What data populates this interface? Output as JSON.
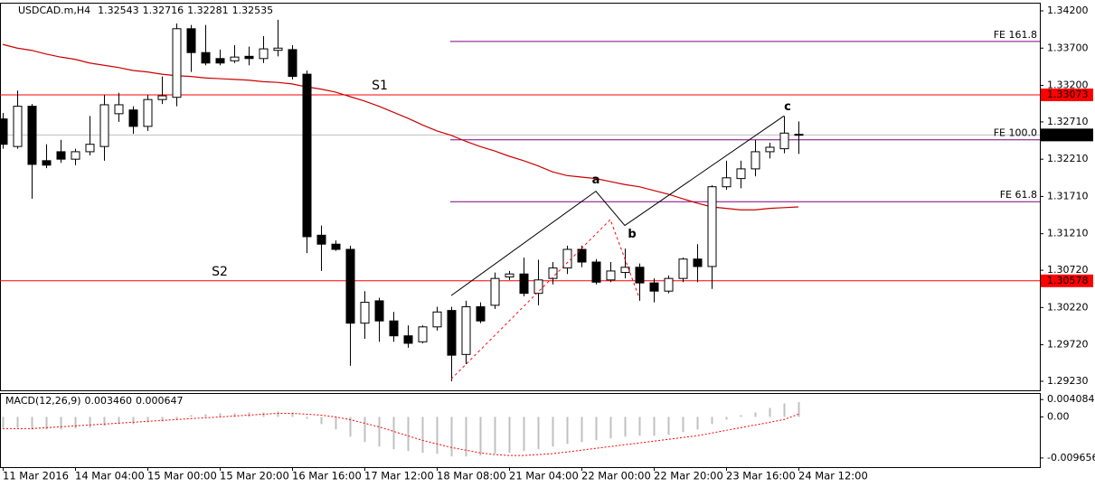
{
  "chart_data": [
    {
      "type": "candlestick",
      "title": "USDCAD.m,H4",
      "categories": [
        "11 Mar 2016",
        null,
        null,
        null,
        null,
        "14 Mar 04:00",
        null,
        null,
        null,
        null,
        "15 Mar 00:00",
        null,
        null,
        null,
        null,
        "15 Mar 20:00",
        null,
        null,
        null,
        null,
        "16 Mar 16:00",
        null,
        null,
        null,
        null,
        "17 Mar 12:00",
        null,
        null,
        null,
        null,
        "18 Mar 08:00",
        null,
        null,
        null,
        null,
        "21 Mar 04:00",
        null,
        null,
        null,
        null,
        "22 Mar 00:00",
        null,
        null,
        null,
        null,
        "22 Mar 20:00",
        null,
        null,
        null,
        null,
        "23 Mar 16:00",
        null,
        null,
        null,
        null,
        "24 Mar 12:00"
      ],
      "open": [
        1.3275,
        1.3238,
        1.3292,
        1.3219,
        1.3231,
        1.3221,
        1.3231,
        1.3238,
        1.3282,
        1.3287,
        1.3265,
        1.3301,
        1.3304,
        1.3396,
        1.3364,
        1.3356,
        1.3353,
        1.3359,
        1.3356,
        1.3367,
        1.3368,
        1.3335,
        1.3119,
        1.3107,
        1.31,
        1.3001,
        1.3031,
        1.3004,
        1.2984,
        1.2976,
        1.2996,
        1.3018,
        1.2959,
        1.3023,
        1.3025,
        1.3063,
        1.3067,
        1.3041,
        1.3061,
        1.3075,
        1.31,
        1.3083,
        1.3059,
        1.3069,
        1.3076,
        1.3055,
        1.3044,
        1.3061,
        1.3087,
        1.3077,
        1.3184,
        1.3195,
        1.3208,
        1.3231,
        1.3235,
        1.32543
      ],
      "high": [
        1.3283,
        1.3313,
        1.3295,
        1.3241,
        1.3247,
        1.3235,
        1.3279,
        1.3307,
        1.331,
        1.3292,
        1.3307,
        1.3332,
        1.3403,
        1.3401,
        1.3401,
        1.3368,
        1.3374,
        1.3372,
        1.3386,
        1.3408,
        1.3374,
        1.334,
        1.3132,
        1.3112,
        1.3105,
        1.3044,
        1.3035,
        1.3016,
        1.2998,
        1.2998,
        1.3023,
        1.3023,
        1.3031,
        1.3029,
        1.3069,
        1.3071,
        1.3089,
        1.3086,
        1.3083,
        1.3105,
        1.3105,
        1.3087,
        1.3083,
        1.3101,
        1.3081,
        1.3061,
        1.3065,
        1.3089,
        1.3107,
        1.3186,
        1.3219,
        1.3219,
        1.3247,
        1.3243,
        1.3279,
        1.32716
      ],
      "low": [
        1.3235,
        1.3235,
        1.3168,
        1.3209,
        1.3216,
        1.3213,
        1.3226,
        1.3219,
        1.3271,
        1.3255,
        1.3259,
        1.3295,
        1.3292,
        1.3338,
        1.3347,
        1.3347,
        1.335,
        1.3347,
        1.335,
        1.3359,
        1.3328,
        1.3095,
        1.3071,
        1.3098,
        1.2944,
        1.298,
        1.2976,
        1.2976,
        1.2968,
        1.2974,
        1.2991,
        1.2923,
        1.2946,
        1.3001,
        1.302,
        1.3059,
        1.3037,
        1.3025,
        1.3053,
        1.3067,
        1.3076,
        1.3053,
        1.3056,
        1.3061,
        1.3031,
        1.3029,
        1.3041,
        1.3056,
        1.3056,
        1.3047,
        1.318,
        1.3182,
        1.3198,
        1.3222,
        1.3229,
        1.32281
      ],
      "close": [
        1.3241,
        1.3292,
        1.3214,
        1.3213,
        1.3221,
        1.3231,
        1.3241,
        1.3294,
        1.3294,
        1.3265,
        1.3301,
        1.3306,
        1.3396,
        1.3364,
        1.335,
        1.335,
        1.3358,
        1.3356,
        1.3369,
        1.337,
        1.3332,
        1.3117,
        1.3107,
        1.31,
        1.3001,
        1.3029,
        1.3004,
        1.2984,
        1.2974,
        1.2996,
        1.3016,
        1.2958,
        1.3023,
        1.3004,
        1.3061,
        1.3067,
        1.3041,
        1.3059,
        1.3075,
        1.31,
        1.3083,
        1.3056,
        1.3071,
        1.3076,
        1.3055,
        1.3044,
        1.3061,
        1.3087,
        1.3077,
        1.3184,
        1.3196,
        1.3208,
        1.3231,
        1.3237,
        1.3256,
        1.32535
      ],
      "moving_average": {
        "color": "#cc0000",
        "values": [
          1.3375,
          1.337,
          1.3367,
          1.3362,
          1.3358,
          1.3355,
          1.335,
          1.3347,
          1.3344,
          1.334,
          1.3338,
          1.3335,
          1.3333,
          1.3332,
          1.333,
          1.3329,
          1.3328,
          1.3327,
          1.3325,
          1.3324,
          1.3322,
          1.3318,
          1.3315,
          1.3311,
          1.3305,
          1.3299,
          1.3292,
          1.3284,
          1.3276,
          1.3267,
          1.3259,
          1.3253,
          1.3245,
          1.3238,
          1.3232,
          1.3225,
          1.3219,
          1.3212,
          1.3204,
          1.3199,
          1.3197,
          1.3195,
          1.3191,
          1.3187,
          1.3184,
          1.3179,
          1.3174,
          1.3168,
          1.3162,
          1.3157,
          1.3155,
          1.3153,
          1.3153,
          1.3155,
          1.3156,
          1.3157
        ]
      },
      "levels": [
        {
          "name": "FE 161.8",
          "value": 1.3379,
          "color": "#800080",
          "from": 31
        },
        {
          "name": "S1",
          "value": 1.33073,
          "color": "#ff0000",
          "tag": true
        },
        {
          "name": "FE 100.0",
          "value": 1.3247,
          "color": "#800080",
          "from": 31
        },
        {
          "name": "FE 61.8",
          "value": 1.3164,
          "color": "#800080",
          "from": 31
        },
        {
          "name": "S2",
          "value": 1.30578,
          "color": "#ff0000",
          "tag": true
        }
      ],
      "price_line_color": "#c0c0c0",
      "waves": {
        "color": "#000000",
        "points": [
          {
            "index": 31,
            "price": 1.3038
          },
          {
            "index": 41,
            "price": 1.3178,
            "label": "a"
          },
          {
            "index": 43,
            "price": 1.3132,
            "label": "b"
          },
          {
            "index": 54,
            "price": 1.3279,
            "label": "c"
          }
        ]
      },
      "dashed": {
        "color": "#ff0000",
        "points": [
          {
            "index": 31,
            "price": 1.2926
          },
          {
            "index": 42,
            "price": 1.314
          },
          {
            "index": 44,
            "price": 1.3035
          }
        ]
      },
      "ylim": [
        1.29109,
        1.34297
      ],
      "yticks": [
        {
          "value": 1.342,
          "label": "1.34200"
        },
        {
          "value": 1.337,
          "label": "1.33700"
        },
        {
          "value": 1.332,
          "label": "1.33200"
        },
        {
          "value": 1.3271,
          "label": "1.32710"
        },
        {
          "value": 1.3221,
          "label": "1.32210"
        },
        {
          "value": 1.3171,
          "label": "1.31710"
        },
        {
          "value": 1.3121,
          "label": "1.31210"
        },
        {
          "value": 1.3072,
          "label": "1.30720"
        },
        {
          "value": 1.3022,
          "label": "1.30220"
        },
        {
          "value": 1.2972,
          "label": "1.29720"
        },
        {
          "value": 1.2923,
          "label": "1.29230"
        }
      ]
    },
    {
      "type": "macd",
      "title": "MACD(12,26,9)",
      "readout": [
        {
          "value": 0.00346,
          "label": "0.003460"
        },
        0.000647
      ],
      "histogram": {
        "color": "#c0c0c0",
        "values": [
          -0.00253,
          -0.00253,
          -0.00295,
          -0.00295,
          -0.00295,
          -0.00274,
          -0.00253,
          -0.00211,
          -0.00169,
          -0.00169,
          -0.00127,
          -0.00106,
          -0.00063,
          0.00042,
          0.00063,
          0.00084,
          0.00084,
          0.00106,
          0.00106,
          0.00127,
          0.00106,
          -0.00042,
          -0.00169,
          -0.00295,
          -0.00464,
          -0.00591,
          -0.00696,
          -0.0076,
          -0.00802,
          -0.00844,
          -0.00865,
          -0.00928,
          -0.00928,
          -0.00907,
          -0.00865,
          -0.00844,
          -0.00802,
          -0.0076,
          -0.00696,
          -0.00633,
          -0.00591,
          -0.00549,
          -0.00506,
          -0.00464,
          -0.00443,
          -0.00443,
          -0.00422,
          -0.00359,
          -0.00295,
          -0.00169,
          -0.00063,
          0.00042,
          0.00106,
          0.00211,
          0.00317,
          0.00346
        ]
      },
      "signal": {
        "color": "#ff0000",
        "values": [
          -0.00274,
          -0.00274,
          -0.00274,
          -0.00253,
          -0.00232,
          -0.00211,
          -0.0019,
          -0.00169,
          -0.00148,
          -0.00127,
          -0.00106,
          -0.00084,
          -0.00063,
          -0.00042,
          -0.00021,
          0,
          0.00021,
          0.00042,
          0.00063,
          0.00084,
          0.00084,
          0.00063,
          0.00042,
          0,
          -0.00063,
          -0.00148,
          -0.00232,
          -0.00338,
          -0.00443,
          -0.00549,
          -0.00633,
          -0.00717,
          -0.00781,
          -0.00844,
          -0.00886,
          -0.00907,
          -0.00907,
          -0.00886,
          -0.00865,
          -0.00823,
          -0.00781,
          -0.00739,
          -0.00696,
          -0.00654,
          -0.00612,
          -0.0057,
          -0.00528,
          -0.00485,
          -0.00443,
          -0.0038,
          -0.00317,
          -0.00253,
          -0.0019,
          -0.00127,
          -0.00063,
          0.000647
        ]
      },
      "ylim": [
        -0.0118,
        0.0054
      ],
      "yticks": [
        0.004084,
        {
          "value": 0,
          "label": "0.00"
        },
        -0.009656
      ]
    }
  ]
}
